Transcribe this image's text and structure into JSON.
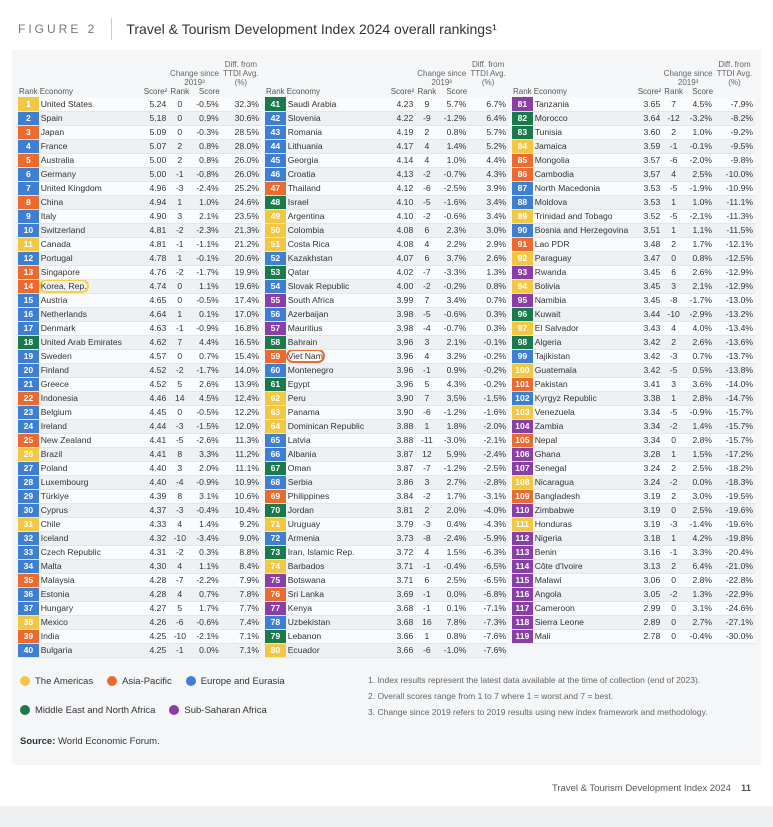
{
  "figure_label": "FIGURE 2",
  "figure_title": "Travel & Tourism Development Index 2024 overall rankings¹",
  "col_headers": {
    "rank": "Rank",
    "economy": "Economy",
    "score": "Score²",
    "change_group": "Change since 2019³",
    "change_rank": "Rank",
    "change_score": "Score",
    "diff": "Diff. from TTDI Avg. (%)"
  },
  "region_colors": {
    "americas": "#f2c744",
    "asia_pacific": "#ea6a2f",
    "europe_eurasia": "#3f7fd1",
    "mena": "#1a7a4c",
    "ssa": "#8a3fa6"
  },
  "legend": [
    {
      "label": "The Americas",
      "color": "#f2c744"
    },
    {
      "label": "Asia-Pacific",
      "color": "#ea6a2f"
    },
    {
      "label": "Europe and Eurasia",
      "color": "#3f7fd1"
    },
    {
      "label": "Middle East and North Africa",
      "color": "#1a7a4c"
    },
    {
      "label": "Sub-Saharan Africa",
      "color": "#8a3fa6"
    }
  ],
  "notes": [
    "Index results represent the latest data available at the time of collection (end of 2023).",
    "Overall scores range from 1 to 7 where 1 = worst and 7 = best.",
    "Change since 2019 refers to 2019 results using new index framework and methodology."
  ],
  "source_label": "Source:",
  "source_value": "World Economic Forum.",
  "footer_title": "Travel & Tourism Development Index 2024",
  "footer_page": "11",
  "highlights": {
    "14": "yellow",
    "59": "orange"
  },
  "rows": [
    {
      "r": 1,
      "e": "United States",
      "s": "5.24",
      "cr": "0",
      "cs": "-0.5%",
      "d": "32.3%",
      "g": "americas"
    },
    {
      "r": 2,
      "e": "Spain",
      "s": "5.18",
      "cr": "0",
      "cs": "0.9%",
      "d": "30.6%",
      "g": "europe_eurasia"
    },
    {
      "r": 3,
      "e": "Japan",
      "s": "5.09",
      "cr": "0",
      "cs": "-0.3%",
      "d": "28.5%",
      "g": "asia_pacific"
    },
    {
      "r": 4,
      "e": "France",
      "s": "5.07",
      "cr": "2",
      "cs": "0.8%",
      "d": "28.0%",
      "g": "europe_eurasia"
    },
    {
      "r": 5,
      "e": "Australia",
      "s": "5.00",
      "cr": "2",
      "cs": "0.8%",
      "d": "26.0%",
      "g": "asia_pacific"
    },
    {
      "r": 6,
      "e": "Germany",
      "s": "5.00",
      "cr": "-1",
      "cs": "-0.8%",
      "d": "26.0%",
      "g": "europe_eurasia"
    },
    {
      "r": 7,
      "e": "United Kingdom",
      "s": "4.96",
      "cr": "-3",
      "cs": "-2.4%",
      "d": "25.2%",
      "g": "europe_eurasia"
    },
    {
      "r": 8,
      "e": "China",
      "s": "4.94",
      "cr": "1",
      "cs": "1.0%",
      "d": "24.6%",
      "g": "asia_pacific"
    },
    {
      "r": 9,
      "e": "Italy",
      "s": "4.90",
      "cr": "3",
      "cs": "2.1%",
      "d": "23.5%",
      "g": "europe_eurasia"
    },
    {
      "r": 10,
      "e": "Switzerland",
      "s": "4.81",
      "cr": "-2",
      "cs": "-2.3%",
      "d": "21.3%",
      "g": "europe_eurasia"
    },
    {
      "r": 11,
      "e": "Canada",
      "s": "4.81",
      "cr": "-1",
      "cs": "-1.1%",
      "d": "21.2%",
      "g": "americas"
    },
    {
      "r": 12,
      "e": "Portugal",
      "s": "4.78",
      "cr": "1",
      "cs": "-0.1%",
      "d": "20.6%",
      "g": "europe_eurasia"
    },
    {
      "r": 13,
      "e": "Singapore",
      "s": "4.76",
      "cr": "-2",
      "cs": "-1.7%",
      "d": "19.9%",
      "g": "asia_pacific"
    },
    {
      "r": 14,
      "e": "Korea, Rep.",
      "s": "4.74",
      "cr": "0",
      "cs": "1.1%",
      "d": "19.6%",
      "g": "asia_pacific"
    },
    {
      "r": 15,
      "e": "Austria",
      "s": "4.65",
      "cr": "0",
      "cs": "-0.5%",
      "d": "17.4%",
      "g": "europe_eurasia"
    },
    {
      "r": 16,
      "e": "Netherlands",
      "s": "4.64",
      "cr": "1",
      "cs": "0.1%",
      "d": "17.0%",
      "g": "europe_eurasia"
    },
    {
      "r": 17,
      "e": "Denmark",
      "s": "4.63",
      "cr": "-1",
      "cs": "-0.9%",
      "d": "16.8%",
      "g": "europe_eurasia"
    },
    {
      "r": 18,
      "e": "United Arab Emirates",
      "s": "4.62",
      "cr": "7",
      "cs": "4.4%",
      "d": "16.5%",
      "g": "mena"
    },
    {
      "r": 19,
      "e": "Sweden",
      "s": "4.57",
      "cr": "0",
      "cs": "0.7%",
      "d": "15.4%",
      "g": "europe_eurasia"
    },
    {
      "r": 20,
      "e": "Finland",
      "s": "4.52",
      "cr": "-2",
      "cs": "-1.7%",
      "d": "14.0%",
      "g": "europe_eurasia"
    },
    {
      "r": 21,
      "e": "Greece",
      "s": "4.52",
      "cr": "5",
      "cs": "2.6%",
      "d": "13.9%",
      "g": "europe_eurasia"
    },
    {
      "r": 22,
      "e": "Indonesia",
      "s": "4.46",
      "cr": "14",
      "cs": "4.5%",
      "d": "12.4%",
      "g": "asia_pacific"
    },
    {
      "r": 23,
      "e": "Belgium",
      "s": "4.45",
      "cr": "0",
      "cs": "-0.5%",
      "d": "12.2%",
      "g": "europe_eurasia"
    },
    {
      "r": 24,
      "e": "Ireland",
      "s": "4.44",
      "cr": "-3",
      "cs": "-1.5%",
      "d": "12.0%",
      "g": "europe_eurasia"
    },
    {
      "r": 25,
      "e": "New Zealand",
      "s": "4.41",
      "cr": "-5",
      "cs": "-2.6%",
      "d": "11.3%",
      "g": "asia_pacific"
    },
    {
      "r": 26,
      "e": "Brazil",
      "s": "4.41",
      "cr": "8",
      "cs": "3.3%",
      "d": "11.2%",
      "g": "americas"
    },
    {
      "r": 27,
      "e": "Poland",
      "s": "4.40",
      "cr": "3",
      "cs": "2.0%",
      "d": "11.1%",
      "g": "europe_eurasia"
    },
    {
      "r": 28,
      "e": "Luxembourg",
      "s": "4.40",
      "cr": "-4",
      "cs": "-0.9%",
      "d": "10.9%",
      "g": "europe_eurasia"
    },
    {
      "r": 29,
      "e": "Türkiye",
      "s": "4.39",
      "cr": "8",
      "cs": "3.1%",
      "d": "10.6%",
      "g": "europe_eurasia"
    },
    {
      "r": 30,
      "e": "Cyprus",
      "s": "4.37",
      "cr": "-3",
      "cs": "-0.4%",
      "d": "10.4%",
      "g": "europe_eurasia"
    },
    {
      "r": 31,
      "e": "Chile",
      "s": "4.33",
      "cr": "4",
      "cs": "1.4%",
      "d": "9.2%",
      "g": "americas"
    },
    {
      "r": 32,
      "e": "Iceland",
      "s": "4.32",
      "cr": "-10",
      "cs": "-3.4%",
      "d": "9.0%",
      "g": "europe_eurasia"
    },
    {
      "r": 33,
      "e": "Czech Republic",
      "s": "4.31",
      "cr": "-2",
      "cs": "0.3%",
      "d": "8.8%",
      "g": "europe_eurasia"
    },
    {
      "r": 34,
      "e": "Malta",
      "s": "4.30",
      "cr": "4",
      "cs": "1.1%",
      "d": "8.4%",
      "g": "europe_eurasia"
    },
    {
      "r": 35,
      "e": "Malaysia",
      "s": "4.28",
      "cr": "-7",
      "cs": "-2.2%",
      "d": "7.9%",
      "g": "asia_pacific"
    },
    {
      "r": 36,
      "e": "Estonia",
      "s": "4.28",
      "cr": "4",
      "cs": "0.7%",
      "d": "7.8%",
      "g": "europe_eurasia"
    },
    {
      "r": 37,
      "e": "Hungary",
      "s": "4.27",
      "cr": "5",
      "cs": "1.7%",
      "d": "7.7%",
      "g": "europe_eurasia"
    },
    {
      "r": 38,
      "e": "Mexico",
      "s": "4.26",
      "cr": "-6",
      "cs": "-0.6%",
      "d": "7.4%",
      "g": "americas"
    },
    {
      "r": 39,
      "e": "India",
      "s": "4.25",
      "cr": "-10",
      "cs": "-2.1%",
      "d": "7.1%",
      "g": "asia_pacific"
    },
    {
      "r": 40,
      "e": "Bulgaria",
      "s": "4.25",
      "cr": "-1",
      "cs": "0.0%",
      "d": "7.1%",
      "g": "europe_eurasia"
    },
    {
      "r": 41,
      "e": "Saudi Arabia",
      "s": "4.23",
      "cr": "9",
      "cs": "5.7%",
      "d": "6.7%",
      "g": "mena"
    },
    {
      "r": 42,
      "e": "Slovenia",
      "s": "4.22",
      "cr": "-9",
      "cs": "-1.2%",
      "d": "6.4%",
      "g": "europe_eurasia"
    },
    {
      "r": 43,
      "e": "Romania",
      "s": "4.19",
      "cr": "2",
      "cs": "0.8%",
      "d": "5.7%",
      "g": "europe_eurasia"
    },
    {
      "r": 44,
      "e": "Lithuania",
      "s": "4.17",
      "cr": "4",
      "cs": "1.4%",
      "d": "5.2%",
      "g": "europe_eurasia"
    },
    {
      "r": 45,
      "e": "Georgia",
      "s": "4.14",
      "cr": "4",
      "cs": "1.0%",
      "d": "4.4%",
      "g": "europe_eurasia"
    },
    {
      "r": 46,
      "e": "Croatia",
      "s": "4.13",
      "cr": "-2",
      "cs": "-0.7%",
      "d": "4.3%",
      "g": "europe_eurasia"
    },
    {
      "r": 47,
      "e": "Thailand",
      "s": "4.12",
      "cr": "-6",
      "cs": "-2.5%",
      "d": "3.9%",
      "g": "asia_pacific"
    },
    {
      "r": 48,
      "e": "Israel",
      "s": "4.10",
      "cr": "-5",
      "cs": "-1.6%",
      "d": "3.4%",
      "g": "mena"
    },
    {
      "r": 49,
      "e": "Argentina",
      "s": "4.10",
      "cr": "-2",
      "cs": "-0.6%",
      "d": "3.4%",
      "g": "americas"
    },
    {
      "r": 50,
      "e": "Colombia",
      "s": "4.08",
      "cr": "6",
      "cs": "2.3%",
      "d": "3.0%",
      "g": "americas"
    },
    {
      "r": 51,
      "e": "Costa Rica",
      "s": "4.08",
      "cr": "4",
      "cs": "2.2%",
      "d": "2.9%",
      "g": "americas"
    },
    {
      "r": 52,
      "e": "Kazakhstan",
      "s": "4.07",
      "cr": "6",
      "cs": "3.7%",
      "d": "2.6%",
      "g": "europe_eurasia"
    },
    {
      "r": 53,
      "e": "Qatar",
      "s": "4.02",
      "cr": "-7",
      "cs": "-3.3%",
      "d": "1.3%",
      "g": "mena"
    },
    {
      "r": 54,
      "e": "Slovak Republic",
      "s": "4.00",
      "cr": "-2",
      "cs": "-0.2%",
      "d": "0.8%",
      "g": "europe_eurasia"
    },
    {
      "r": 55,
      "e": "South Africa",
      "s": "3.99",
      "cr": "7",
      "cs": "3.4%",
      "d": "0.7%",
      "g": "ssa"
    },
    {
      "r": 56,
      "e": "Azerbaijan",
      "s": "3.98",
      "cr": "-5",
      "cs": "-0.6%",
      "d": "0.3%",
      "g": "europe_eurasia"
    },
    {
      "r": 57,
      "e": "Mauritius",
      "s": "3.98",
      "cr": "-4",
      "cs": "-0.7%",
      "d": "0.3%",
      "g": "ssa"
    },
    {
      "r": 58,
      "e": "Bahrain",
      "s": "3.96",
      "cr": "3",
      "cs": "2.1%",
      "d": "-0.1%",
      "g": "mena"
    },
    {
      "r": 59,
      "e": "Viet Nam",
      "s": "3.96",
      "cr": "4",
      "cs": "3.2%",
      "d": "-0.2%",
      "g": "asia_pacific"
    },
    {
      "r": 60,
      "e": "Montenegro",
      "s": "3.96",
      "cr": "-1",
      "cs": "0.9%",
      "d": "-0.2%",
      "g": "europe_eurasia"
    },
    {
      "r": 61,
      "e": "Egypt",
      "s": "3.96",
      "cr": "5",
      "cs": "4.3%",
      "d": "-0.2%",
      "g": "mena"
    },
    {
      "r": 62,
      "e": "Peru",
      "s": "3.90",
      "cr": "7",
      "cs": "3.5%",
      "d": "-1.5%",
      "g": "americas"
    },
    {
      "r": 63,
      "e": "Panama",
      "s": "3.90",
      "cr": "-6",
      "cs": "-1.2%",
      "d": "-1.6%",
      "g": "americas"
    },
    {
      "r": 64,
      "e": "Dominican Republic",
      "s": "3.88",
      "cr": "1",
      "cs": "1.8%",
      "d": "-2.0%",
      "g": "americas"
    },
    {
      "r": 65,
      "e": "Latvia",
      "s": "3.88",
      "cr": "-11",
      "cs": "-3.0%",
      "d": "-2.1%",
      "g": "europe_eurasia"
    },
    {
      "r": 66,
      "e": "Albania",
      "s": "3.87",
      "cr": "12",
      "cs": "5.9%",
      "d": "-2.4%",
      "g": "europe_eurasia"
    },
    {
      "r": 67,
      "e": "Oman",
      "s": "3.87",
      "cr": "-7",
      "cs": "-1.2%",
      "d": "-2.5%",
      "g": "mena"
    },
    {
      "r": 68,
      "e": "Serbia",
      "s": "3.86",
      "cr": "3",
      "cs": "2.7%",
      "d": "-2.8%",
      "g": "europe_eurasia"
    },
    {
      "r": 69,
      "e": "Philippines",
      "s": "3.84",
      "cr": "-2",
      "cs": "1.7%",
      "d": "-3.1%",
      "g": "asia_pacific"
    },
    {
      "r": 70,
      "e": "Jordan",
      "s": "3.81",
      "cr": "2",
      "cs": "2.0%",
      "d": "-4.0%",
      "g": "mena"
    },
    {
      "r": 71,
      "e": "Uruguay",
      "s": "3.79",
      "cr": "-3",
      "cs": "0.4%",
      "d": "-4.3%",
      "g": "americas"
    },
    {
      "r": 72,
      "e": "Armenia",
      "s": "3.73",
      "cr": "-8",
      "cs": "-2.4%",
      "d": "-5.9%",
      "g": "europe_eurasia"
    },
    {
      "r": 73,
      "e": "Iran, Islamic Rep.",
      "s": "3.72",
      "cr": "4",
      "cs": "1.5%",
      "d": "-6.3%",
      "g": "mena"
    },
    {
      "r": 74,
      "e": "Barbados",
      "s": "3.71",
      "cr": "-1",
      "cs": "-0.4%",
      "d": "-6.5%",
      "g": "americas"
    },
    {
      "r": 75,
      "e": "Botswana",
      "s": "3.71",
      "cr": "6",
      "cs": "2.5%",
      "d": "-6.5%",
      "g": "ssa"
    },
    {
      "r": 76,
      "e": "Sri Lanka",
      "s": "3.69",
      "cr": "-1",
      "cs": "0.0%",
      "d": "-6.8%",
      "g": "asia_pacific"
    },
    {
      "r": 77,
      "e": "Kenya",
      "s": "3.68",
      "cr": "-1",
      "cs": "0.1%",
      "d": "-7.1%",
      "g": "ssa"
    },
    {
      "r": 78,
      "e": "Uzbekistan",
      "s": "3.68",
      "cr": "16",
      "cs": "7.8%",
      "d": "-7.3%",
      "g": "europe_eurasia"
    },
    {
      "r": 79,
      "e": "Lebanon",
      "s": "3.66",
      "cr": "1",
      "cs": "0.8%",
      "d": "-7.6%",
      "g": "mena"
    },
    {
      "r": 80,
      "e": "Ecuador",
      "s": "3.66",
      "cr": "-6",
      "cs": "-1.0%",
      "d": "-7.6%",
      "g": "americas"
    },
    {
      "r": 81,
      "e": "Tanzania",
      "s": "3.65",
      "cr": "7",
      "cs": "4.5%",
      "d": "-7.9%",
      "g": "ssa"
    },
    {
      "r": 82,
      "e": "Morocco",
      "s": "3.64",
      "cr": "-12",
      "cs": "-3.2%",
      "d": "-8.2%",
      "g": "mena"
    },
    {
      "r": 83,
      "e": "Tunisia",
      "s": "3.60",
      "cr": "2",
      "cs": "1.0%",
      "d": "-9.2%",
      "g": "mena"
    },
    {
      "r": 84,
      "e": "Jamaica",
      "s": "3.59",
      "cr": "-1",
      "cs": "-0.1%",
      "d": "-9.5%",
      "g": "americas"
    },
    {
      "r": 85,
      "e": "Mongolia",
      "s": "3.57",
      "cr": "-6",
      "cs": "-2.0%",
      "d": "-9.8%",
      "g": "asia_pacific"
    },
    {
      "r": 86,
      "e": "Cambodia",
      "s": "3.57",
      "cr": "4",
      "cs": "2.5%",
      "d": "-10.0%",
      "g": "asia_pacific"
    },
    {
      "r": 87,
      "e": "North Macedonia",
      "s": "3.53",
      "cr": "-5",
      "cs": "-1.9%",
      "d": "-10.9%",
      "g": "europe_eurasia"
    },
    {
      "r": 88,
      "e": "Moldova",
      "s": "3.53",
      "cr": "1",
      "cs": "1.0%",
      "d": "-11.1%",
      "g": "europe_eurasia"
    },
    {
      "r": 89,
      "e": "Trinidad and Tobago",
      "s": "3.52",
      "cr": "-5",
      "cs": "-2.1%",
      "d": "-11.3%",
      "g": "americas"
    },
    {
      "r": 90,
      "e": "Bosnia and Herzegovina",
      "s": "3.51",
      "cr": "1",
      "cs": "1.1%",
      "d": "-11.5%",
      "g": "europe_eurasia"
    },
    {
      "r": 91,
      "e": "Lao PDR",
      "s": "3.48",
      "cr": "2",
      "cs": "1.7%",
      "d": "-12.1%",
      "g": "asia_pacific"
    },
    {
      "r": 92,
      "e": "Paraguay",
      "s": "3.47",
      "cr": "0",
      "cs": "0.8%",
      "d": "-12.5%",
      "g": "americas"
    },
    {
      "r": 93,
      "e": "Rwanda",
      "s": "3.45",
      "cr": "6",
      "cs": "2.6%",
      "d": "-12.9%",
      "g": "ssa"
    },
    {
      "r": 94,
      "e": "Bolivia",
      "s": "3.45",
      "cr": "3",
      "cs": "2.1%",
      "d": "-12.9%",
      "g": "americas"
    },
    {
      "r": 95,
      "e": "Namibia",
      "s": "3.45",
      "cr": "-8",
      "cs": "-1.7%",
      "d": "-13.0%",
      "g": "ssa"
    },
    {
      "r": 96,
      "e": "Kuwait",
      "s": "3.44",
      "cr": "-10",
      "cs": "-2.9%",
      "d": "-13.2%",
      "g": "mena"
    },
    {
      "r": 97,
      "e": "El Salvador",
      "s": "3.43",
      "cr": "4",
      "cs": "4.0%",
      "d": "-13.4%",
      "g": "americas"
    },
    {
      "r": 98,
      "e": "Algeria",
      "s": "3.42",
      "cr": "2",
      "cs": "2.6%",
      "d": "-13.6%",
      "g": "mena"
    },
    {
      "r": 99,
      "e": "Tajikistan",
      "s": "3.42",
      "cr": "-3",
      "cs": "0.7%",
      "d": "-13.7%",
      "g": "europe_eurasia"
    },
    {
      "r": 100,
      "e": "Guatemala",
      "s": "3.42",
      "cr": "-5",
      "cs": "0.5%",
      "d": "-13.8%",
      "g": "americas"
    },
    {
      "r": 101,
      "e": "Pakistan",
      "s": "3.41",
      "cr": "3",
      "cs": "3.6%",
      "d": "-14.0%",
      "g": "asia_pacific"
    },
    {
      "r": 102,
      "e": "Kyrgyz Republic",
      "s": "3.38",
      "cr": "1",
      "cs": "2.8%",
      "d": "-14.7%",
      "g": "europe_eurasia"
    },
    {
      "r": 103,
      "e": "Venezuela",
      "s": "3.34",
      "cr": "-5",
      "cs": "-0.9%",
      "d": "-15.7%",
      "g": "americas"
    },
    {
      "r": 104,
      "e": "Zambia",
      "s": "3.34",
      "cr": "-2",
      "cs": "1.4%",
      "d": "-15.7%",
      "g": "ssa"
    },
    {
      "r": 105,
      "e": "Nepal",
      "s": "3.34",
      "cr": "0",
      "cs": "2.8%",
      "d": "-15.7%",
      "g": "asia_pacific"
    },
    {
      "r": 106,
      "e": "Ghana",
      "s": "3.28",
      "cr": "1",
      "cs": "1.5%",
      "d": "-17.2%",
      "g": "ssa"
    },
    {
      "r": 107,
      "e": "Senegal",
      "s": "3.24",
      "cr": "2",
      "cs": "2.5%",
      "d": "-18.2%",
      "g": "ssa"
    },
    {
      "r": 108,
      "e": "Nicaragua",
      "s": "3.24",
      "cr": "-2",
      "cs": "0.0%",
      "d": "-18.3%",
      "g": "americas"
    },
    {
      "r": 109,
      "e": "Bangladesh",
      "s": "3.19",
      "cr": "2",
      "cs": "3.0%",
      "d": "-19.5%",
      "g": "asia_pacific"
    },
    {
      "r": 110,
      "e": "Zimbabwe",
      "s": "3.19",
      "cr": "0",
      "cs": "2.5%",
      "d": "-19.6%",
      "g": "ssa"
    },
    {
      "r": 111,
      "e": "Honduras",
      "s": "3.19",
      "cr": "-3",
      "cs": "-1.4%",
      "d": "-19.6%",
      "g": "americas"
    },
    {
      "r": 112,
      "e": "Nigeria",
      "s": "3.18",
      "cr": "1",
      "cs": "4.2%",
      "d": "-19.8%",
      "g": "ssa"
    },
    {
      "r": 113,
      "e": "Benin",
      "s": "3.16",
      "cr": "-1",
      "cs": "3.3%",
      "d": "-20.4%",
      "g": "ssa"
    },
    {
      "r": 114,
      "e": "Côte d'Ivoire",
      "s": "3.13",
      "cr": "2",
      "cs": "6.4%",
      "d": "-21.0%",
      "g": "ssa"
    },
    {
      "r": 115,
      "e": "Malawi",
      "s": "3.06",
      "cr": "0",
      "cs": "2.8%",
      "d": "-22.8%",
      "g": "ssa"
    },
    {
      "r": 116,
      "e": "Angola",
      "s": "3.05",
      "cr": "-2",
      "cs": "1.3%",
      "d": "-22.9%",
      "g": "ssa"
    },
    {
      "r": 117,
      "e": "Cameroon",
      "s": "2.99",
      "cr": "0",
      "cs": "3.1%",
      "d": "-24.6%",
      "g": "ssa"
    },
    {
      "r": 118,
      "e": "Sierra Leone",
      "s": "2.89",
      "cr": "0",
      "cs": "2.7%",
      "d": "-27.1%",
      "g": "ssa"
    },
    {
      "r": 119,
      "e": "Mali",
      "s": "2.78",
      "cr": "0",
      "cs": "-0.4%",
      "d": "-30.0%",
      "g": "ssa"
    }
  ]
}
